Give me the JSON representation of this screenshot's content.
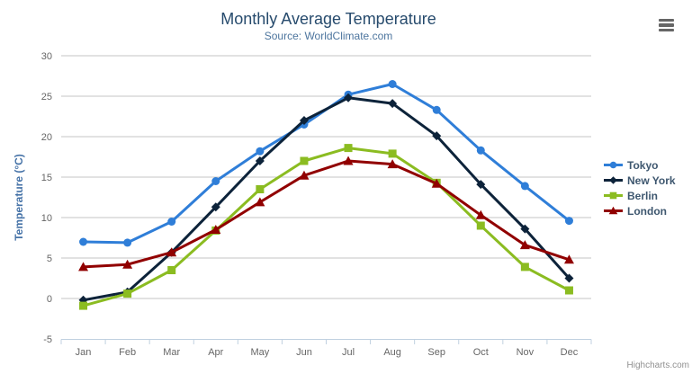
{
  "header": {
    "title": "Monthly Average Temperature",
    "subtitle": "Source: WorldClimate.com"
  },
  "credit_label": "Highcharts.com",
  "export_menu": {
    "icon": "hamburger-menu-icon"
  },
  "colors": {
    "title": "#274b6d",
    "subtitle": "#4d759e",
    "axis_labels": "#666666",
    "y_axis_title": "#4572a7",
    "gridline": "#c6c6c6",
    "axis_line": "#c0d0e0",
    "legend_text": "#3e576f",
    "credit": "#909090"
  },
  "chart_data": {
    "type": "line",
    "title": "Monthly Average Temperature",
    "subtitle": "Source: WorldClimate.com",
    "xlabel": "",
    "ylabel": "Temperature (°C)",
    "ylim": [
      -5,
      30
    ],
    "ytick_step": 5,
    "grid": true,
    "legend_position": "right",
    "categories": [
      "Jan",
      "Feb",
      "Mar",
      "Apr",
      "May",
      "Jun",
      "Jul",
      "Aug",
      "Sep",
      "Oct",
      "Nov",
      "Dec"
    ],
    "series": [
      {
        "name": "Tokyo",
        "color": "#2f7ed8",
        "marker": "circle",
        "values": [
          7.0,
          6.9,
          9.5,
          14.5,
          18.2,
          21.5,
          25.2,
          26.5,
          23.3,
          18.3,
          13.9,
          9.6
        ]
      },
      {
        "name": "New York",
        "color": "#0d233a",
        "marker": "diamond",
        "values": [
          -0.2,
          0.8,
          5.7,
          11.3,
          17.0,
          22.0,
          24.8,
          24.1,
          20.1,
          14.1,
          8.6,
          2.5
        ]
      },
      {
        "name": "Berlin",
        "color": "#8bbc21",
        "marker": "square",
        "values": [
          -0.9,
          0.6,
          3.5,
          8.4,
          13.5,
          17.0,
          18.6,
          17.9,
          14.3,
          9.0,
          3.9,
          1.0
        ]
      },
      {
        "name": "London",
        "color": "#910000",
        "marker": "triangle",
        "values": [
          3.9,
          4.2,
          5.7,
          8.5,
          11.9,
          15.2,
          17.0,
          16.6,
          14.2,
          10.3,
          6.6,
          4.8
        ]
      }
    ]
  }
}
